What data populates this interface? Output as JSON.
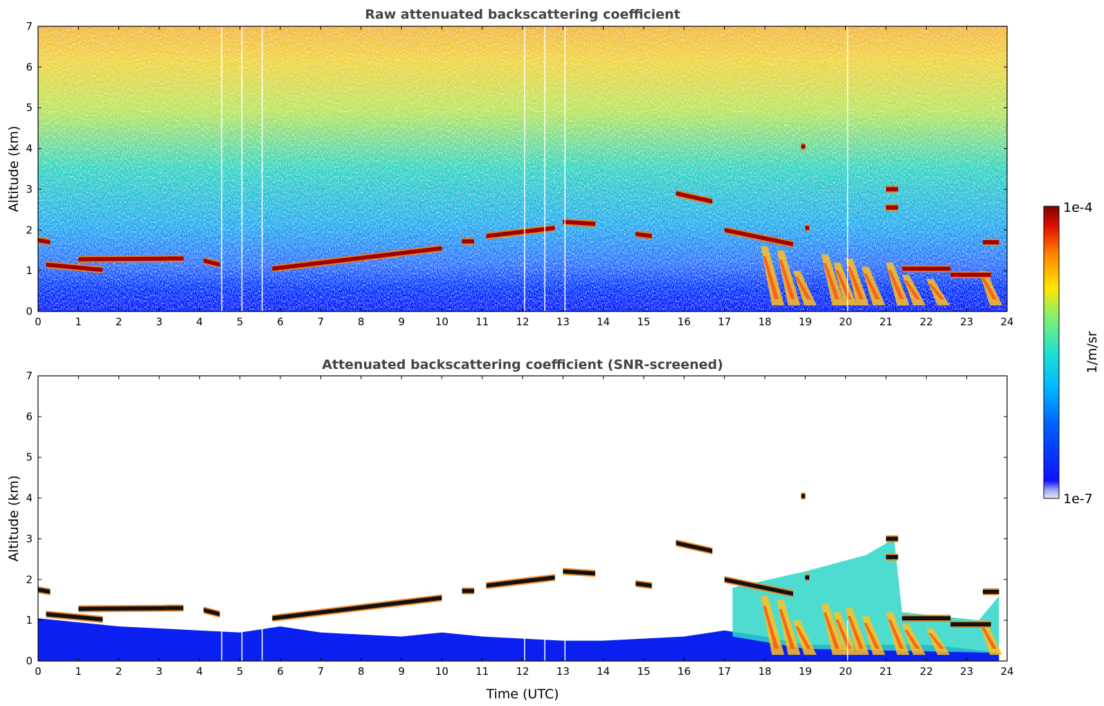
{
  "chart_data": [
    {
      "type": "heatmap",
      "title": "Raw attenuated backscattering coefficient",
      "xlabel": "",
      "ylabel": "Altitude (km)",
      "xlim": [
        0,
        24
      ],
      "ylim": [
        0,
        7
      ],
      "xticks": [
        "0",
        "1",
        "2",
        "3",
        "4",
        "5",
        "6",
        "7",
        "8",
        "9",
        "10",
        "11",
        "12",
        "13",
        "14",
        "15",
        "16",
        "17",
        "18",
        "19",
        "20",
        "21",
        "22",
        "23",
        "24"
      ],
      "yticks": [
        "0",
        "1",
        "2",
        "3",
        "4",
        "5",
        "6",
        "7"
      ],
      "screened": false,
      "cloud_layers": [
        {
          "t0": 0.0,
          "t1": 0.3,
          "z0": 1.75,
          "z1": 1.7
        },
        {
          "t0": 0.2,
          "t1": 1.6,
          "z0": 1.15,
          "z1": 1.02
        },
        {
          "t0": 1.0,
          "t1": 3.6,
          "z0": 1.28,
          "z1": 1.3
        },
        {
          "t0": 3.2,
          "t1": 3.5,
          "z0": 1.3,
          "z1": 1.3
        },
        {
          "t0": 4.1,
          "t1": 4.5,
          "z0": 1.25,
          "z1": 1.15
        },
        {
          "t0": 5.8,
          "t1": 10.0,
          "z0": 1.05,
          "z1": 1.55
        },
        {
          "t0": 10.5,
          "t1": 10.8,
          "z0": 1.72,
          "z1": 1.72
        },
        {
          "t0": 11.1,
          "t1": 12.8,
          "z0": 1.85,
          "z1": 2.05
        },
        {
          "t0": 13.0,
          "t1": 13.8,
          "z0": 2.2,
          "z1": 2.15
        },
        {
          "t0": 14.8,
          "t1": 15.2,
          "z0": 1.9,
          "z1": 1.85
        },
        {
          "t0": 15.8,
          "t1": 16.7,
          "z0": 2.9,
          "z1": 2.7
        },
        {
          "t0": 17.0,
          "t1": 18.7,
          "z0": 2.0,
          "z1": 1.65
        },
        {
          "t0": 18.9,
          "t1": 19.0,
          "z0": 4.05,
          "z1": 4.05
        },
        {
          "t0": 19.0,
          "t1": 19.1,
          "z0": 2.05,
          "z1": 2.05
        },
        {
          "t0": 21.0,
          "t1": 21.3,
          "z0": 3.0,
          "z1": 3.0
        },
        {
          "t0": 21.0,
          "t1": 21.3,
          "z0": 2.55,
          "z1": 2.55
        },
        {
          "t0": 21.4,
          "t1": 22.6,
          "z0": 1.05,
          "z1": 1.05
        },
        {
          "t0": 22.6,
          "t1": 23.6,
          "z0": 0.9,
          "z1": 0.9
        },
        {
          "t0": 23.4,
          "t1": 23.8,
          "z0": 1.7,
          "z1": 1.7
        }
      ],
      "precip_streaks": [
        {
          "t": 17.9,
          "z": 1.6
        },
        {
          "t": 18.3,
          "z": 1.5
        },
        {
          "t": 18.7,
          "z": 1.0
        },
        {
          "t": 19.4,
          "z": 1.4
        },
        {
          "t": 19.7,
          "z": 1.2
        },
        {
          "t": 20.0,
          "z": 1.3
        },
        {
          "t": 20.4,
          "z": 1.1
        },
        {
          "t": 21.0,
          "z": 1.2
        },
        {
          "t": 21.4,
          "z": 0.9
        },
        {
          "t": 22.0,
          "z": 0.8
        },
        {
          "t": 23.3,
          "z": 1.0
        }
      ],
      "gaps": [
        4.55,
        5.05,
        5.55,
        12.05,
        12.55,
        13.05,
        20.05
      ]
    },
    {
      "type": "heatmap",
      "title": "Attenuated backscattering coefficient (SNR-screened)",
      "xlabel": "Time (UTC)",
      "ylabel": "Altitude (km)",
      "xlim": [
        0,
        24
      ],
      "ylim": [
        0,
        7
      ],
      "xticks": [
        "0",
        "1",
        "2",
        "3",
        "4",
        "5",
        "6",
        "7",
        "8",
        "9",
        "10",
        "11",
        "12",
        "13",
        "14",
        "15",
        "16",
        "17",
        "18",
        "19",
        "20",
        "21",
        "22",
        "23",
        "24"
      ],
      "yticks": [
        "0",
        "1",
        "2",
        "3",
        "4",
        "5",
        "6",
        "7"
      ],
      "screened": true
    }
  ],
  "colorbar": {
    "label": "1/m/sr",
    "min_label": "1e-7",
    "max_label": "1e-4",
    "scale": "log",
    "colormap": "jet"
  }
}
